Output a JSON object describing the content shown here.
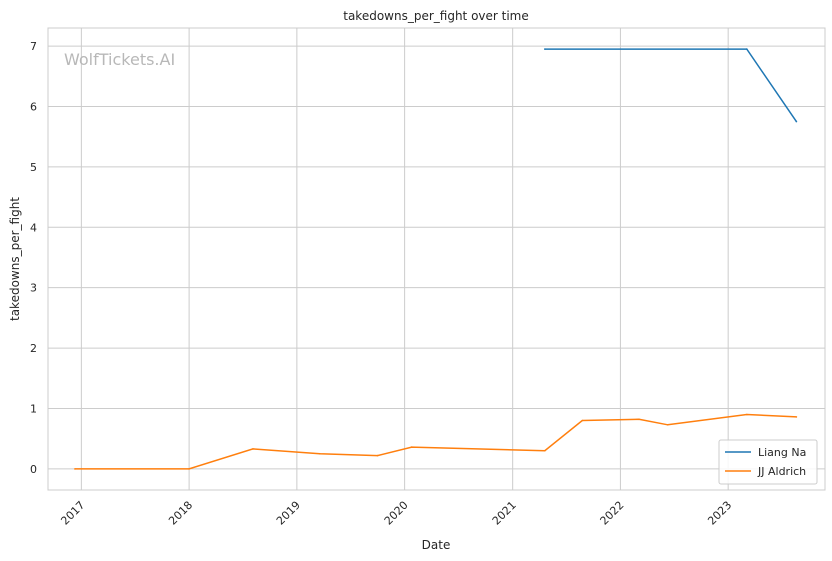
{
  "chart_data": {
    "type": "line",
    "title": "takedowns_per_fight over time",
    "xlabel": "Date",
    "ylabel": "takedowns_per_fight",
    "watermark": "WolfTickets.AI",
    "x_ticks": [
      "2017",
      "2018",
      "2019",
      "2020",
      "2021",
      "2022",
      "2023"
    ],
    "y_ticks": [
      "0",
      "1",
      "2",
      "3",
      "4",
      "5",
      "6",
      "7"
    ],
    "xlim": [
      "2016-09-10",
      "2023-11-25"
    ],
    "ylim": [
      -0.35,
      7.3
    ],
    "grid": true,
    "legend_position": "bottom-right",
    "series": [
      {
        "name": "Liang Na",
        "color": "#1f77b4",
        "points": [
          {
            "x": "2021-04-20",
            "y": 6.95
          },
          {
            "x": "2023-03-05",
            "y": 6.95
          },
          {
            "x": "2023-08-20",
            "y": 5.75
          }
        ]
      },
      {
        "name": "JJ Aldrich",
        "color": "#ff7f0e",
        "points": [
          {
            "x": "2016-12-10",
            "y": 0.0
          },
          {
            "x": "2018-01-01",
            "y": 0.0
          },
          {
            "x": "2018-08-05",
            "y": 0.33
          },
          {
            "x": "2019-03-20",
            "y": 0.25
          },
          {
            "x": "2019-10-01",
            "y": 0.22
          },
          {
            "x": "2020-01-25",
            "y": 0.36
          },
          {
            "x": "2021-04-20",
            "y": 0.3
          },
          {
            "x": "2021-08-25",
            "y": 0.8
          },
          {
            "x": "2022-03-05",
            "y": 0.82
          },
          {
            "x": "2022-06-10",
            "y": 0.73
          },
          {
            "x": "2023-03-05",
            "y": 0.9
          },
          {
            "x": "2023-08-20",
            "y": 0.86
          }
        ]
      }
    ]
  }
}
